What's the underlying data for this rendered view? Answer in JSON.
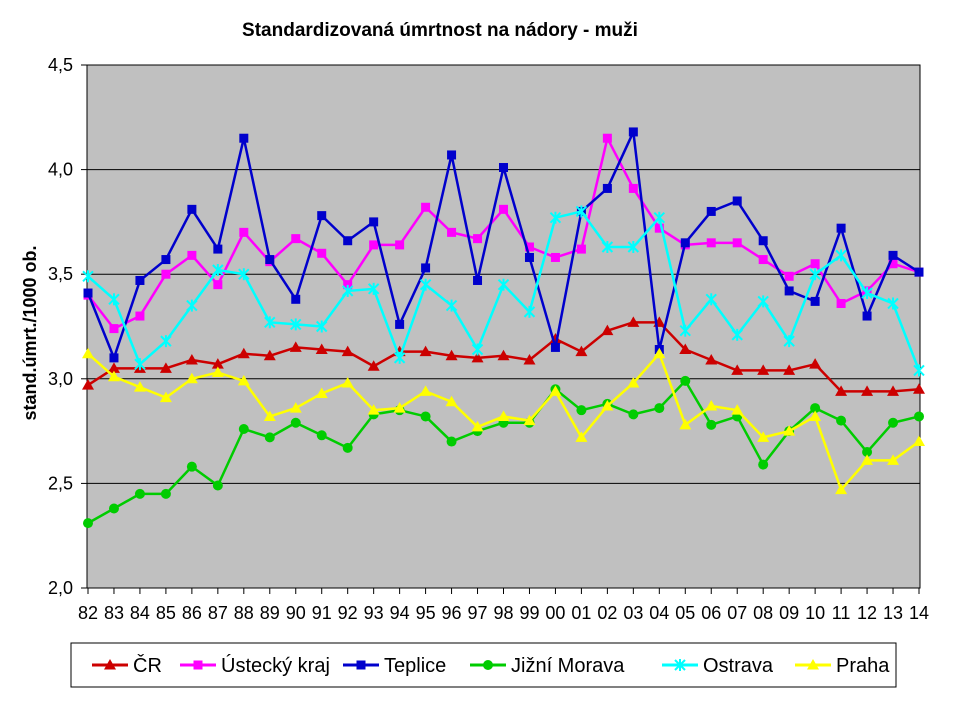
{
  "chart_data": {
    "type": "line",
    "title": "Standardizovaná úmrtnost na nádory - muži",
    "ylabel": "stand.úmrt./1000 ob.",
    "xlabel": "",
    "ylim": [
      2.0,
      4.5
    ],
    "yticks": [
      "2,0",
      "2,5",
      "3,0",
      "3,5",
      "4,0",
      "4,5"
    ],
    "ytick_values": [
      2.0,
      2.5,
      3.0,
      3.5,
      4.0,
      4.5
    ],
    "categories": [
      "82",
      "83",
      "84",
      "85",
      "86",
      "87",
      "88",
      "89",
      "90",
      "91",
      "92",
      "93",
      "94",
      "95",
      "96",
      "97",
      "98",
      "99",
      "00",
      "01",
      "02",
      "03",
      "04",
      "05",
      "06",
      "07",
      "08",
      "09",
      "10",
      "11",
      "12",
      "13",
      "14"
    ],
    "grid": "horizontal",
    "legend_position": "bottom",
    "plot_background": "#c0c0c0",
    "series": [
      {
        "name": "ČR",
        "color": "#cc0000",
        "marker": "triangle",
        "values": [
          2.97,
          3.05,
          3.05,
          3.05,
          3.09,
          3.07,
          3.12,
          3.11,
          3.15,
          3.14,
          3.13,
          3.06,
          3.13,
          3.13,
          3.11,
          3.1,
          3.11,
          3.09,
          3.19,
          3.13,
          3.23,
          3.27,
          3.27,
          3.14,
          3.09,
          3.04,
          3.04,
          3.04,
          3.07,
          2.94,
          2.94,
          2.94,
          2.95
        ]
      },
      {
        "name": "Ústecký kraj",
        "color": "#ff00ff",
        "marker": "square",
        "values": [
          3.4,
          3.24,
          3.3,
          3.5,
          3.59,
          3.45,
          3.7,
          3.56,
          3.67,
          3.6,
          3.45,
          3.64,
          3.64,
          3.82,
          3.7,
          3.67,
          3.81,
          3.63,
          3.58,
          3.62,
          4.15,
          3.91,
          3.72,
          3.64,
          3.65,
          3.65,
          3.57,
          3.49,
          3.55,
          3.36,
          3.42,
          3.55,
          3.51
        ]
      },
      {
        "name": "Teplice",
        "color": "#0000cc",
        "marker": "square",
        "values": [
          3.41,
          3.1,
          3.47,
          3.57,
          3.81,
          3.62,
          4.15,
          3.57,
          3.38,
          3.78,
          3.66,
          3.75,
          3.26,
          3.53,
          4.07,
          3.47,
          4.01,
          3.58,
          3.15,
          3.8,
          3.91,
          4.18,
          3.14,
          3.65,
          3.8,
          3.85,
          3.66,
          3.42,
          3.37,
          3.72,
          3.3,
          3.59,
          3.51
        ]
      },
      {
        "name": "Jižní Morava",
        "color": "#00cc00",
        "marker": "circle",
        "values": [
          2.31,
          2.38,
          2.45,
          2.45,
          2.58,
          2.49,
          2.76,
          2.72,
          2.79,
          2.73,
          2.67,
          2.83,
          2.85,
          2.82,
          2.7,
          2.75,
          2.79,
          2.79,
          2.95,
          2.85,
          2.88,
          2.83,
          2.86,
          2.99,
          2.78,
          2.82,
          2.59,
          2.75,
          2.86,
          2.8,
          2.65,
          2.79,
          2.82
        ]
      },
      {
        "name": "Ostrava",
        "color": "#00ffff",
        "marker": "star",
        "values": [
          3.49,
          3.38,
          3.07,
          3.18,
          3.35,
          3.52,
          3.5,
          3.27,
          3.26,
          3.25,
          3.42,
          3.43,
          3.1,
          3.45,
          3.35,
          3.14,
          3.45,
          3.32,
          3.77,
          3.8,
          3.63,
          3.63,
          3.77,
          3.23,
          3.38,
          3.21,
          3.37,
          3.18,
          3.5,
          3.59,
          3.41,
          3.36,
          3.04
        ]
      },
      {
        "name": "Praha",
        "color": "#ffff00",
        "marker": "triangle",
        "values": [
          3.12,
          3.01,
          2.96,
          2.91,
          3.0,
          3.03,
          2.99,
          2.82,
          2.86,
          2.93,
          2.98,
          2.85,
          2.86,
          2.94,
          2.89,
          2.77,
          2.82,
          2.8,
          2.94,
          2.72,
          2.87,
          2.98,
          3.12,
          2.78,
          2.87,
          2.85,
          2.72,
          2.75,
          2.82,
          2.47,
          2.61,
          2.61,
          2.7
        ]
      }
    ]
  }
}
